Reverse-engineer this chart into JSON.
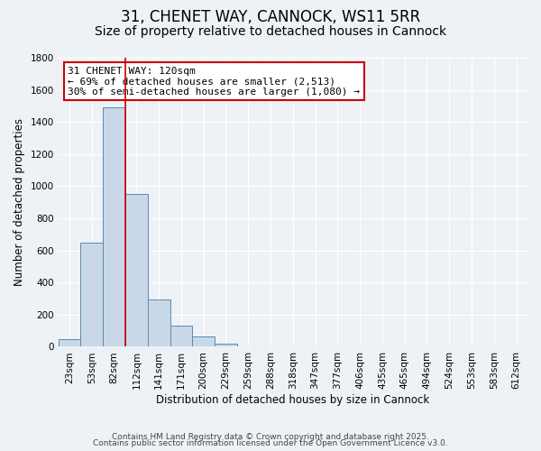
{
  "title": "31, CHENET WAY, CANNOCK, WS11 5RR",
  "subtitle": "Size of property relative to detached houses in Cannock",
  "bar_values": [
    45,
    650,
    1490,
    950,
    295,
    130,
    65,
    20,
    5,
    0,
    0,
    0,
    0,
    0,
    0,
    0,
    0,
    0,
    0,
    0,
    0
  ],
  "bin_labels": [
    "23sqm",
    "53sqm",
    "82sqm",
    "112sqm",
    "141sqm",
    "171sqm",
    "200sqm",
    "229sqm",
    "259sqm",
    "288sqm",
    "318sqm",
    "347sqm",
    "377sqm",
    "406sqm",
    "435sqm",
    "465sqm",
    "494sqm",
    "524sqm",
    "553sqm",
    "583sqm",
    "612sqm"
  ],
  "bar_color": "#c8d8e8",
  "bar_edge_color": "#5a8ab0",
  "vline_x_index": 3,
  "vline_color": "#cc0000",
  "annotation_title": "31 CHENET WAY: 120sqm",
  "annotation_line1": "← 69% of detached houses are smaller (2,513)",
  "annotation_line2": "30% of semi-detached houses are larger (1,080) →",
  "annotation_box_color": "#ffffff",
  "annotation_box_edge_color": "#cc0000",
  "xlabel": "Distribution of detached houses by size in Cannock",
  "ylabel": "Number of detached properties",
  "ylim": [
    0,
    1800
  ],
  "yticks": [
    0,
    200,
    400,
    600,
    800,
    1000,
    1200,
    1400,
    1600,
    1800
  ],
  "footer1": "Contains HM Land Registry data © Crown copyright and database right 2025.",
  "footer2": "Contains public sector information licensed under the Open Government Licence v3.0.",
  "background_color": "#eef2f7",
  "grid_color": "#ffffff",
  "title_fontsize": 12,
  "subtitle_fontsize": 10,
  "axis_label_fontsize": 8.5,
  "tick_fontsize": 7.5,
  "annotation_fontsize": 8,
  "footer_fontsize": 6.5
}
